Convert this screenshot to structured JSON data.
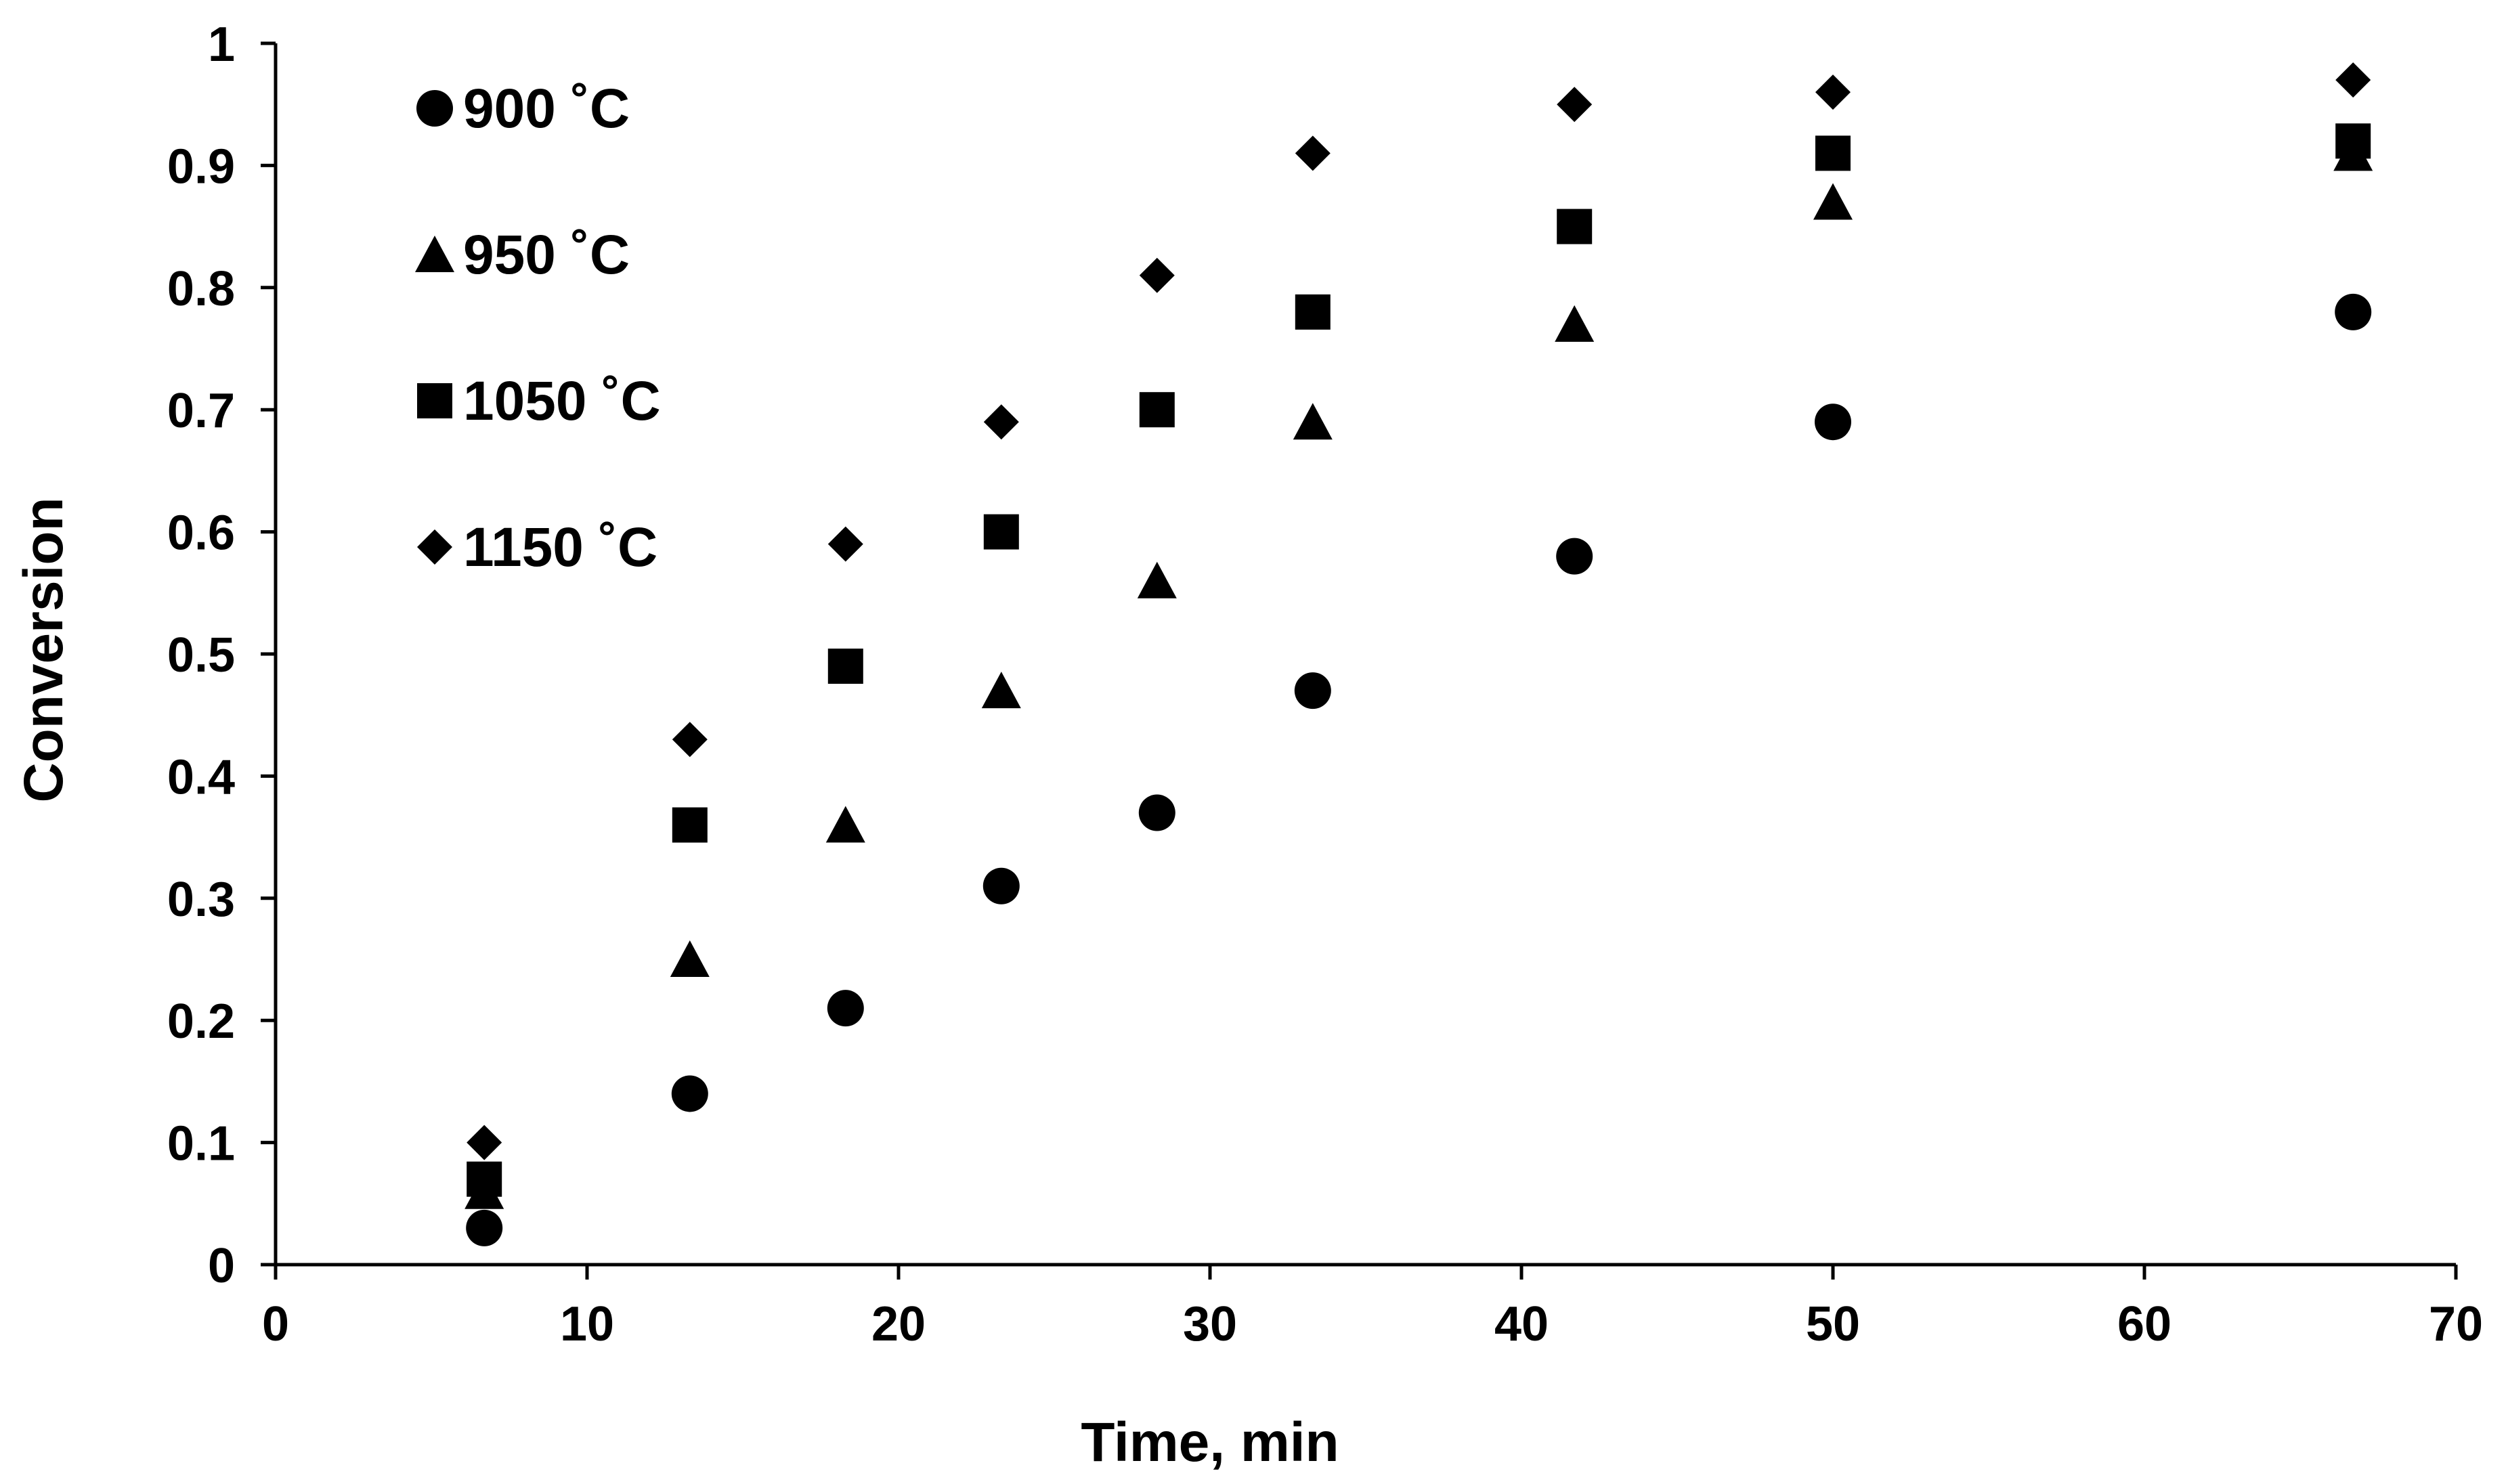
{
  "chart_data": {
    "type": "scatter",
    "title": "",
    "xlabel": "Time, min",
    "ylabel": "Conversion",
    "xlim": [
      0,
      70
    ],
    "ylim": [
      0,
      1
    ],
    "x_ticks": [
      0,
      10,
      20,
      30,
      40,
      50,
      60,
      70
    ],
    "y_ticks": [
      0,
      0.1,
      0.2,
      0.3,
      0.4,
      0.5,
      0.6,
      0.7,
      0.8,
      0.9,
      1
    ],
    "x_tick_labels": [
      "0",
      "10",
      "20",
      "30",
      "40",
      "50",
      "60",
      "70"
    ],
    "y_tick_labels": [
      "0",
      "0.1",
      "0.2",
      "0.3",
      "0.4",
      "0.5",
      "0.6",
      "0.7",
      "0.8",
      "0.9",
      "1"
    ],
    "grid": false,
    "legend_position": "top-left",
    "x": [
      6.7,
      13.3,
      18.3,
      23.3,
      28.3,
      33.3,
      41.7,
      50.0,
      66.7
    ],
    "series": [
      {
        "name": "900 ˚C",
        "marker": "circle",
        "values": [
          0.03,
          0.14,
          0.21,
          0.31,
          0.37,
          0.47,
          0.58,
          0.69,
          0.78
        ]
      },
      {
        "name": "950 ˚C",
        "marker": "triangle",
        "values": [
          0.06,
          0.25,
          0.36,
          0.47,
          0.56,
          0.69,
          0.77,
          0.87,
          0.91
        ]
      },
      {
        "name": "1050 ˚C",
        "marker": "square",
        "values": [
          0.07,
          0.36,
          0.49,
          0.6,
          0.7,
          0.78,
          0.85,
          0.91,
          0.92
        ]
      },
      {
        "name": "1150 ˚C",
        "marker": "diamond",
        "values": [
          0.1,
          0.43,
          0.59,
          0.69,
          0.81,
          0.91,
          0.95,
          0.96,
          0.97
        ]
      }
    ],
    "colors": {
      "marker": "#000000",
      "axis": "#000000",
      "background": "#ffffff"
    }
  }
}
